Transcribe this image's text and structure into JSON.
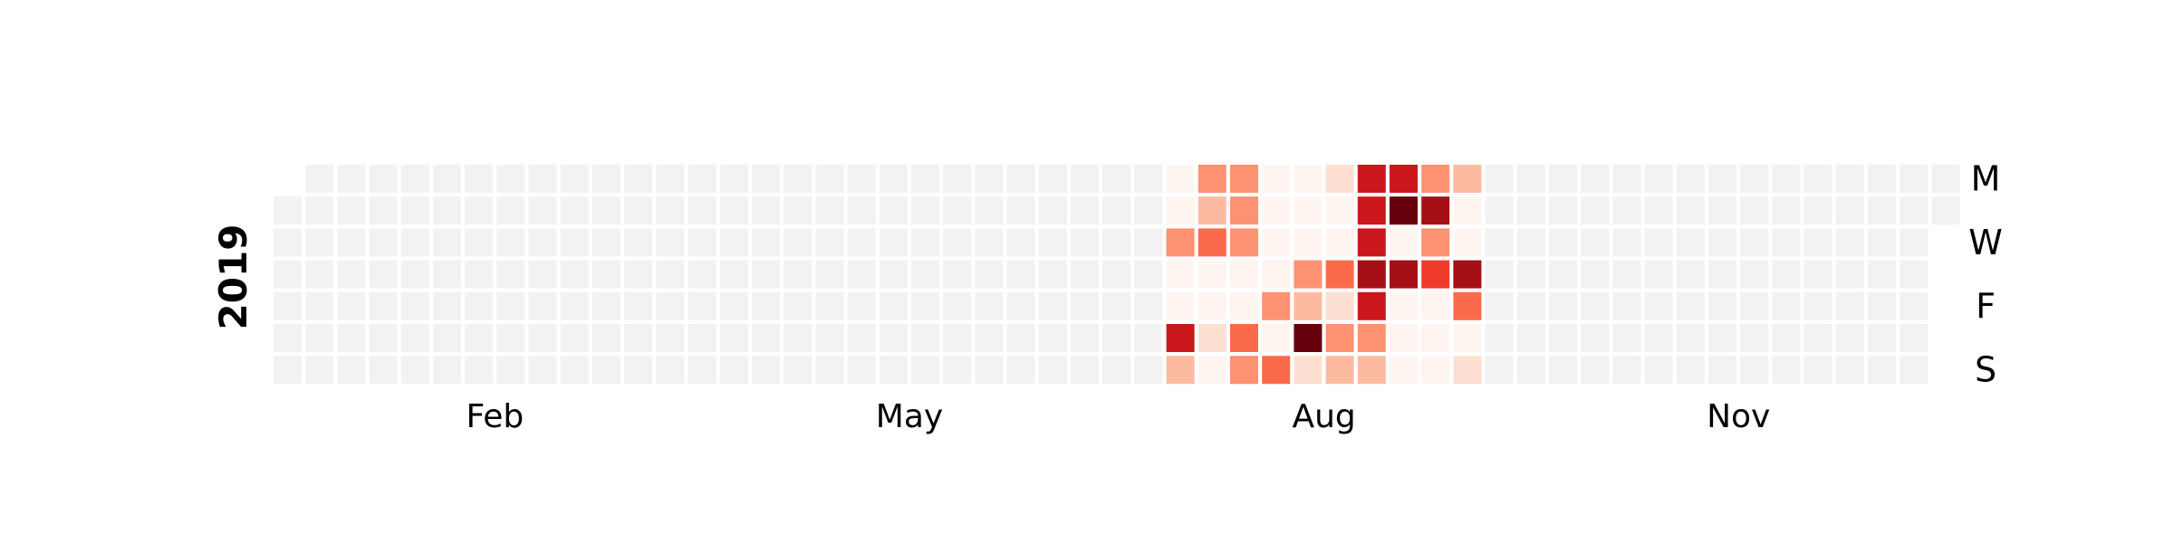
{
  "chart_data": {
    "type": "heatmap",
    "year": "2019",
    "month_labels": [
      {
        "label": "Feb",
        "week": 7
      },
      {
        "label": "May",
        "week": 20
      },
      {
        "label": "Aug",
        "week": 33
      },
      {
        "label": "Nov",
        "week": 46
      }
    ],
    "weekday_labels": [
      {
        "label": "M",
        "row": 0
      },
      {
        "label": "W",
        "row": 2
      },
      {
        "label": "F",
        "row": 4
      },
      {
        "label": "S",
        "row": 6
      }
    ],
    "weeks": 53,
    "first_day_row": 1,
    "days_in_year": 365,
    "empty_color": "#f2f2f2",
    "color_scale": [
      "#fff5f0",
      "#fee0d2",
      "#fcbba1",
      "#fc9272",
      "#fb6a4a",
      "#ef3b2c",
      "#cb181d",
      "#a50f15",
      "#67000d"
    ],
    "active": [
      {
        "week": 28,
        "values": [
          0,
          0,
          0.35,
          0.05,
          0.05,
          0.8,
          0.25
        ]
      },
      {
        "week": 29,
        "values": [
          0.32,
          0.3,
          0.55,
          0.05,
          0.05,
          0.15,
          0.05
        ]
      },
      {
        "week": 30,
        "values": [
          0.38,
          0.38,
          0.38,
          0.05,
          0.05,
          0.45,
          0.38
        ]
      },
      {
        "week": 31,
        "values": [
          0.05,
          0.05,
          0.05,
          0.05,
          0.35,
          0.05,
          0.45
        ]
      },
      {
        "week": 32,
        "values": [
          0.05,
          0.05,
          0.05,
          0.4,
          0.25,
          1.0,
          0.15
        ]
      },
      {
        "week": 33,
        "values": [
          0.15,
          0.05,
          0.05,
          0.45,
          0.15,
          0.42,
          0.3
        ]
      },
      {
        "week": 34,
        "values": [
          0.8,
          0.8,
          0.8,
          0.82,
          0.8,
          0.35,
          0.22
        ]
      },
      {
        "week": 35,
        "values": [
          0.75,
          1.0,
          0.05,
          0.88,
          0.05,
          0.05,
          0.05
        ]
      },
      {
        "week": 36,
        "values": [
          0.32,
          0.82,
          0.32,
          0.65,
          0.05,
          0.05,
          0.05
        ]
      },
      {
        "week": 37,
        "values": [
          0.25,
          0.05,
          0.05,
          0.82,
          0.45,
          0.05,
          0.15
        ]
      }
    ]
  }
}
